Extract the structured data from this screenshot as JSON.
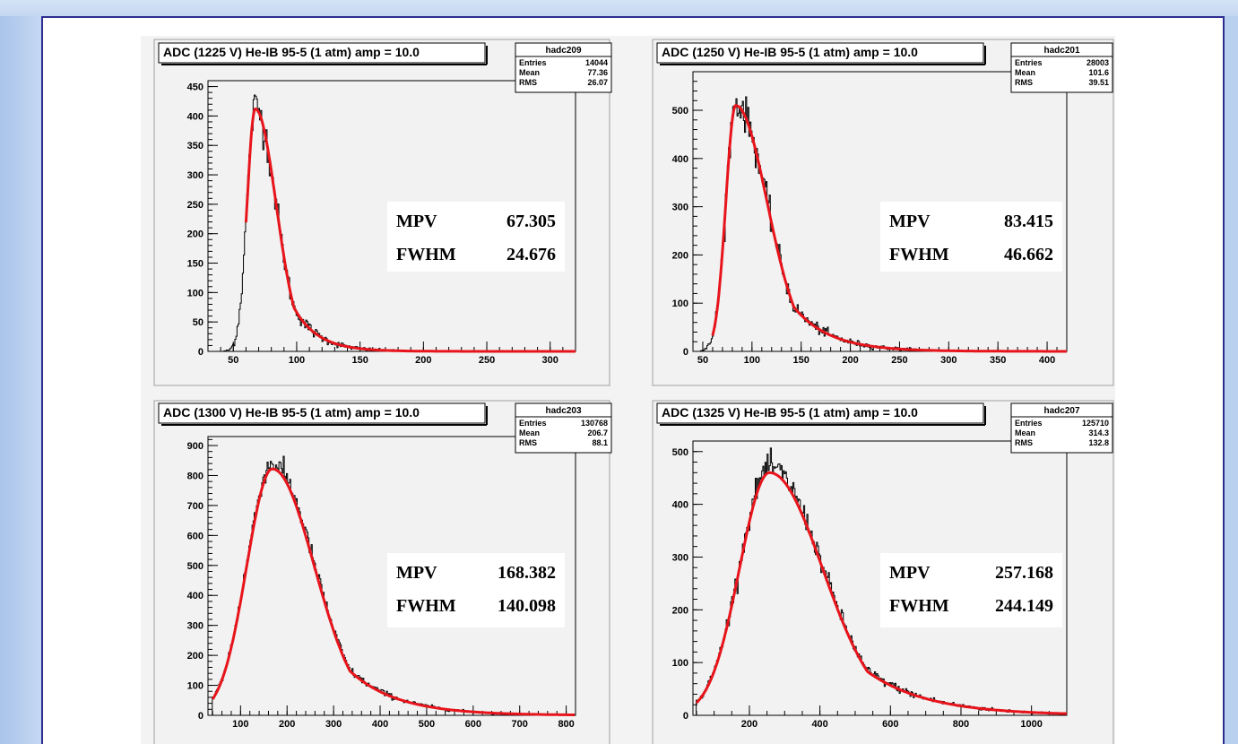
{
  "chart_data": [
    {
      "type": "histogram",
      "title": "ADC (1225 V) He-IB 95-5 (1 atm) amp = 10.0",
      "stats": {
        "name": "hadc209",
        "rows": [
          [
            "Entries",
            "14044"
          ],
          [
            "Mean",
            "77.36"
          ],
          [
            "RMS",
            "26.07"
          ]
        ]
      },
      "xlim": [
        30,
        320
      ],
      "ylim": [
        0,
        460
      ],
      "xticks": [
        50,
        100,
        150,
        200,
        250,
        300
      ],
      "yticks": [
        0,
        50,
        100,
        150,
        200,
        250,
        300,
        350,
        400,
        450
      ],
      "xminor": 10,
      "yminor": 10,
      "hist": {
        "start": 60,
        "end": 320,
        "peak_y": 415,
        "mpv": 67.305,
        "sigma_l": 6.5,
        "sigma_r": 16.5,
        "tail_start": 42,
        "noise": 0.09
      },
      "fit": {
        "mpv": 67.305,
        "fwhm": 24.676,
        "peak_y": 412,
        "start": 60,
        "end": 320,
        "sigma_l": 6.5,
        "sigma_r": 16.5
      },
      "annotation": {
        "mpv_label": "MPV",
        "mpv_value": "67.305",
        "fwhm_label": "FWHM",
        "fwhm_value": "24.676"
      }
    },
    {
      "type": "histogram",
      "title": "ADC (1250 V) He-IB 95-5 (1 atm) amp = 10.0",
      "stats": {
        "name": "hadc201",
        "rows": [
          [
            "Entries",
            "28003"
          ],
          [
            "Mean",
            "101.6"
          ],
          [
            "RMS",
            "39.51"
          ]
        ]
      },
      "xlim": [
        40,
        420
      ],
      "ylim": [
        0,
        580
      ],
      "xticks": [
        50,
        100,
        150,
        200,
        250,
        300,
        350,
        400
      ],
      "yticks": [
        0,
        100,
        200,
        300,
        400,
        500
      ],
      "xminor": 10,
      "yminor": 20,
      "hist": {
        "start": 60,
        "end": 420,
        "peak_y": 515,
        "mpv": 83.415,
        "sigma_l": 10,
        "sigma_r": 32,
        "tail_start": 48,
        "noise": 0.08
      },
      "fit": {
        "mpv": 83.415,
        "fwhm": 46.662,
        "peak_y": 510,
        "start": 60,
        "end": 420,
        "sigma_l": 10,
        "sigma_r": 32
      },
      "annotation": {
        "mpv_label": "MPV",
        "mpv_value": "83.415",
        "fwhm_label": "FWHM",
        "fwhm_value": "46.662"
      }
    },
    {
      "type": "histogram",
      "title": "ADC (1300 V) He-IB 95-5 (1 atm) amp = 10.0",
      "stats": {
        "name": "hadc203",
        "rows": [
          [
            "Entries",
            "130768"
          ],
          [
            "Mean",
            "206.7"
          ],
          [
            "RMS",
            "88.1"
          ]
        ]
      },
      "xlim": [
        30,
        820
      ],
      "ylim": [
        0,
        930
      ],
      "xticks": [
        100,
        200,
        300,
        400,
        500,
        600,
        700,
        800
      ],
      "yticks": [
        0,
        100,
        200,
        300,
        400,
        500,
        600,
        700,
        800,
        900
      ],
      "xminor": 20,
      "yminor": 20,
      "hist": {
        "start": 40,
        "end": 820,
        "peak_y": 840,
        "mpv": 168.382,
        "sigma_l": 55,
        "sigma_r": 90,
        "tail_start": 40,
        "noise": 0.045
      },
      "fit": {
        "mpv": 168.382,
        "fwhm": 140.098,
        "peak_y": 822,
        "start": 40,
        "end": 820,
        "sigma_l": 55,
        "sigma_r": 90
      },
      "annotation": {
        "mpv_label": "MPV",
        "mpv_value": "168.382",
        "fwhm_label": "FWHM",
        "fwhm_value": "140.098"
      }
    },
    {
      "type": "histogram",
      "title": "ADC (1325 V) He-IB 95-5 (1 atm) amp = 10.0",
      "stats": {
        "name": "hadc207",
        "rows": [
          [
            "Entries",
            "125710"
          ],
          [
            "Mean",
            "314.3"
          ],
          [
            "RMS",
            "132.8"
          ]
        ]
      },
      "xlim": [
        40,
        1100
      ],
      "ylim": [
        0,
        520
      ],
      "xticks": [
        200,
        400,
        600,
        800,
        1000
      ],
      "yticks": [
        0,
        100,
        200,
        300,
        400,
        500
      ],
      "xminor": 50,
      "yminor": 20,
      "hist": {
        "start": 50,
        "end": 1100,
        "peak_y": 470,
        "mpv": 257.168,
        "sigma_l": 85,
        "sigma_r": 150,
        "tail_start": 50,
        "noise": 0.055
      },
      "fit": {
        "mpv": 257.168,
        "fwhm": 244.149,
        "peak_y": 460,
        "start": 50,
        "end": 1100,
        "sigma_l": 85,
        "sigma_r": 150
      },
      "annotation": {
        "mpv_label": "MPV",
        "mpv_value": "257.168",
        "fwhm_label": "FWHM",
        "fwhm_value": "244.149"
      }
    }
  ],
  "colors": {
    "fit": "#e8141b",
    "hist": "#000000",
    "frame_bg": "#f2f2f2",
    "panel_bg": "#f3f3f3"
  }
}
